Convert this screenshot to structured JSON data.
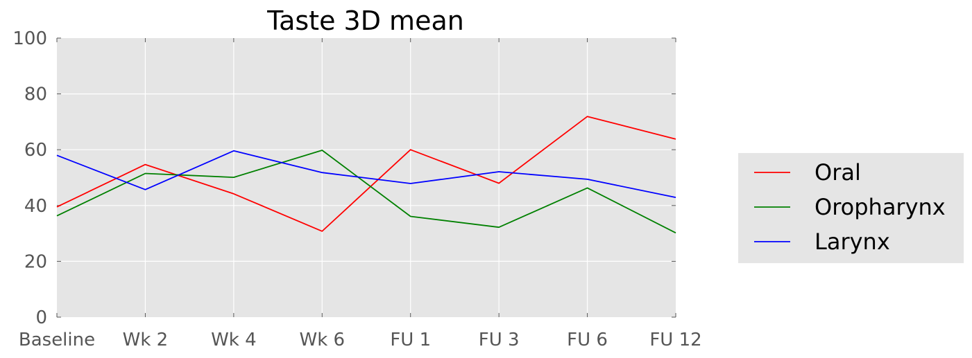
{
  "chart_data": {
    "type": "line",
    "title": "Taste 3D  mean",
    "xlabel": "",
    "ylabel": "",
    "categories": [
      "Baseline",
      "Wk 2",
      "Wk 4",
      "Wk 6",
      "FU 1",
      "FU 3",
      "FU 6",
      "FU 12"
    ],
    "ylim": [
      0,
      100
    ],
    "yticks": [
      0,
      20,
      40,
      60,
      80,
      100
    ],
    "grid": true,
    "legend_position": "right",
    "series": [
      {
        "name": "Oral",
        "color": "#ff0000",
        "values": [
          39.5,
          54.7,
          44.2,
          30.8,
          60.0,
          48.0,
          71.9,
          63.8
        ]
      },
      {
        "name": "Oropharynx",
        "color": "#008000",
        "values": [
          36.3,
          51.5,
          50.1,
          59.8,
          36.1,
          32.2,
          46.3,
          30.2
        ]
      },
      {
        "name": "Larynx",
        "color": "#0000ff",
        "values": [
          58.0,
          45.7,
          59.6,
          51.8,
          47.9,
          52.1,
          49.4,
          42.9
        ]
      }
    ]
  }
}
